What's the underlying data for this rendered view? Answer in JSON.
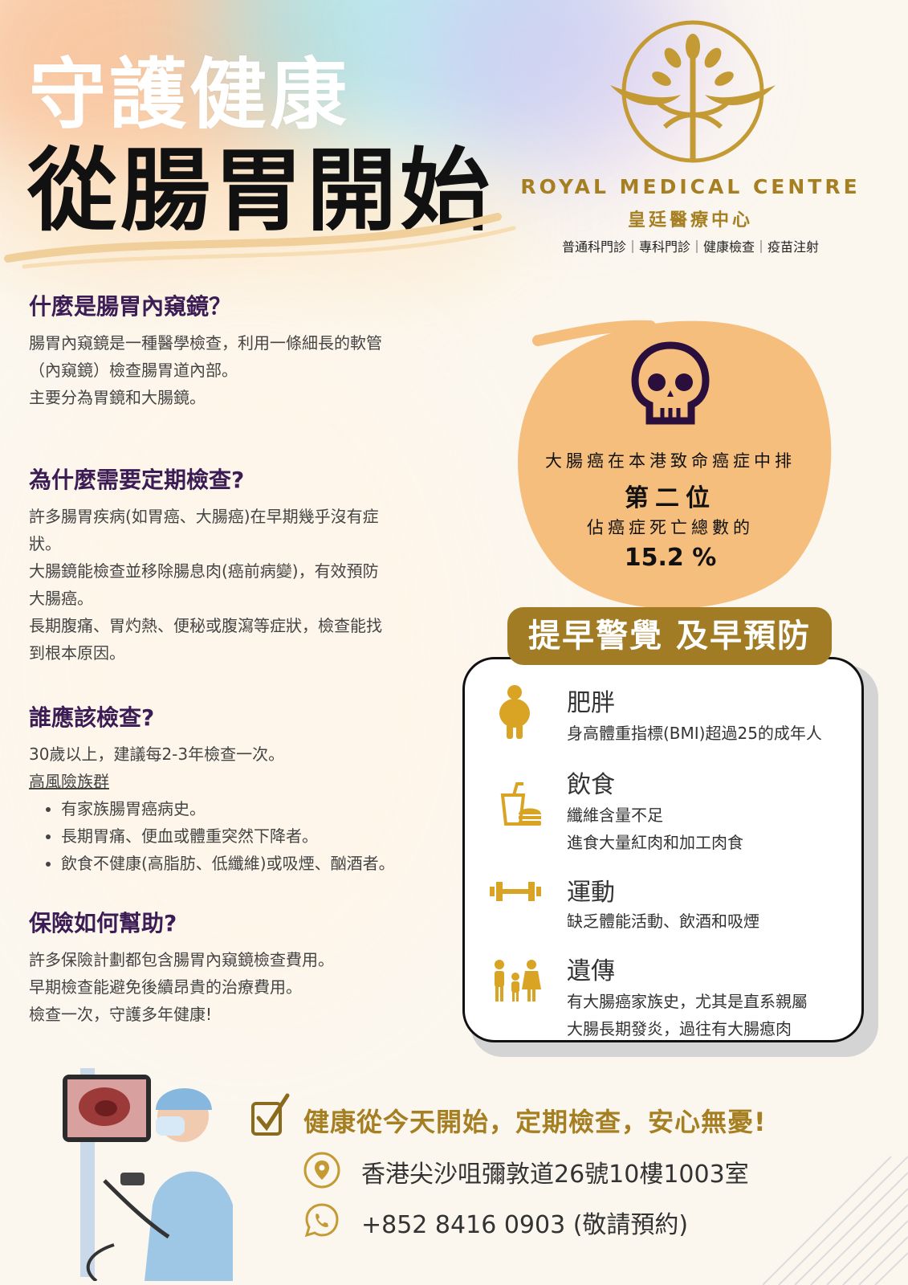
{
  "hero": {
    "line1": "守護健康",
    "line2": "從腸胃開始"
  },
  "brand": {
    "name_en": "ROYAL MEDICAL CENTRE",
    "name_zh": "皇廷醫療中心",
    "services": "普通科門診｜專科門診｜健康檢查｜疫苗注射",
    "gold": "#a57f22"
  },
  "sections": [
    {
      "title": "什麼是腸胃內窺鏡？",
      "lines": [
        "腸胃內窺鏡是一種醫學檢查，利用一條細長的軟管",
        "（內窺鏡）檢查腸胃道內部。",
        "主要分為胃鏡和大腸鏡。"
      ]
    },
    {
      "title": "為什麼需要定期檢查?",
      "lines": [
        "許多腸胃疾病(如胃癌、大腸癌)在早期幾乎沒有症",
        "狀。",
        "大腸鏡能檢查並移除腸息肉(癌前病變)，有效預防",
        "大腸癌。",
        "長期腹痛、胃灼熱、便秘或腹瀉等症狀，檢查能找",
        "到根本原因。"
      ]
    },
    {
      "title": "誰應該檢查?",
      "lines": [
        "30歲以上，建議每2-3年檢查一次。"
      ],
      "subhead": "高風險族群",
      "bullets": [
        "有家族腸胃癌病史。",
        "長期胃痛、便血或體重突然下降者。",
        "飲食不健康(高脂肪、低纖維)或吸煙、酗酒者。"
      ]
    },
    {
      "title": "保險如何幫助?",
      "lines": [
        "許多保險計劃都包含腸胃內窺鏡檢查費用。",
        "早期檢查能避免後續昂貴的治療費用。",
        "檢查一次，守護多年健康!"
      ]
    }
  ],
  "stat": {
    "line1": "大腸癌在本港致命癌症中排",
    "rank": "第二位",
    "line2": "佔癌症死亡總數的",
    "percent": "15.2 %",
    "circle_color": "#f6be7c"
  },
  "risk": {
    "header": "提早警覺 及早預防",
    "items": [
      {
        "icon": "obese-person-icon",
        "title": "肥胖",
        "lines": [
          "身高體重指標(BMI)超過25的成年人"
        ]
      },
      {
        "icon": "fast-food-icon",
        "title": "飲食",
        "lines": [
          "纖維含量不足",
          "進食大量紅肉和加工肉食"
        ]
      },
      {
        "icon": "dumbbell-icon",
        "title": "運動",
        "lines": [
          "缺乏體能活動、飲酒和吸煙"
        ]
      },
      {
        "icon": "family-icon",
        "title": "遺傳",
        "lines": [
          "有大腸癌家族史，尤其是直系親屬",
          "大腸長期發炎，過往有大腸瘜肉"
        ]
      }
    ]
  },
  "footer": {
    "slogan": "健康從今天開始，定期檢查，安心無憂!",
    "address": "香港尖沙咀彌敦道26號10樓1003室",
    "phone": "+852 8416 0903 (敬請預約)"
  }
}
